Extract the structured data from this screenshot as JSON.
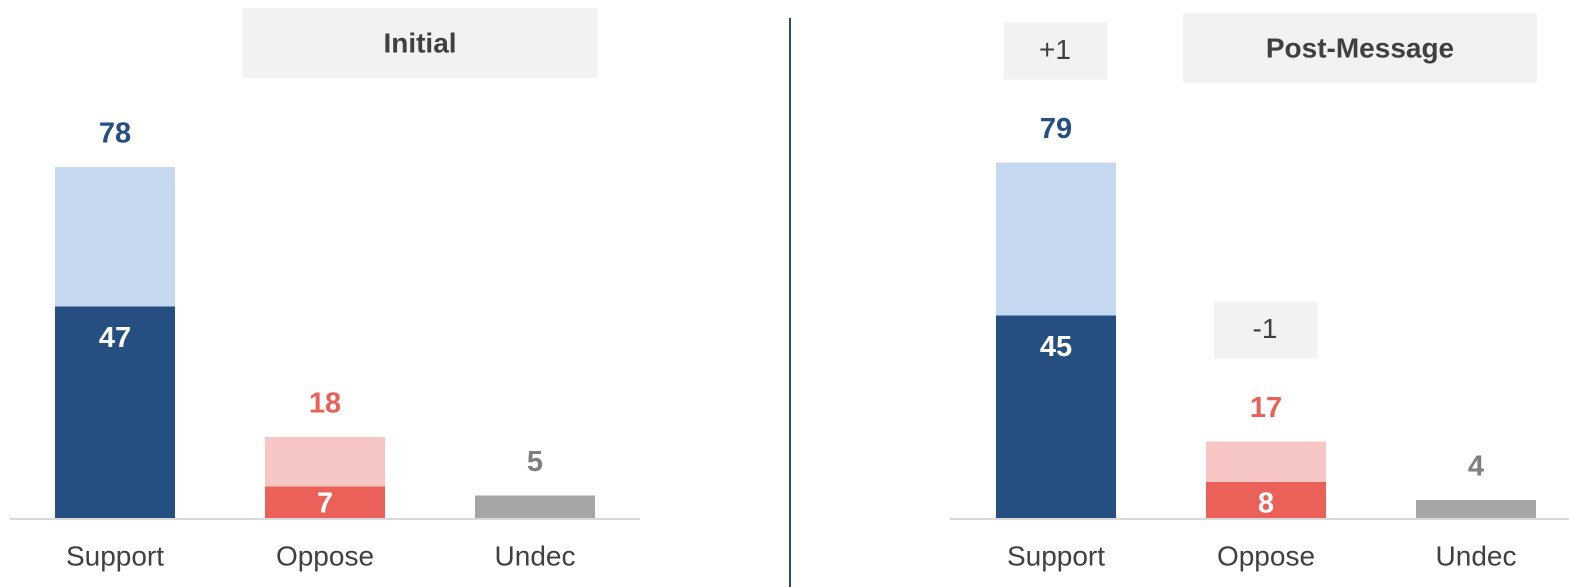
{
  "chart_data": [
    {
      "type": "bar",
      "title": "Initial",
      "categories": [
        "Support",
        "Oppose",
        "Undec"
      ],
      "values": [
        78,
        18,
        5
      ],
      "inner_values": [
        47,
        7,
        null
      ],
      "colors": [
        "#c6d9f0",
        "#f6c6c4",
        "#a6a6a6"
      ],
      "inner_colors": [
        "#244f80",
        "#eb6159",
        null
      ],
      "label_colors": [
        "#244f80",
        "#eb6159",
        "#7f7f7f"
      ],
      "ylim": [
        0,
        80
      ]
    },
    {
      "type": "bar",
      "title": "Post-Message",
      "categories": [
        "Support",
        "Oppose",
        "Undec"
      ],
      "values": [
        79,
        17,
        4
      ],
      "inner_values": [
        45,
        8,
        null
      ],
      "colors": [
        "#c6d9f0",
        "#f6c6c4",
        "#a6a6a6"
      ],
      "inner_colors": [
        "#244f80",
        "#eb6159",
        null
      ],
      "label_colors": [
        "#244f80",
        "#eb6159",
        "#7f7f7f"
      ],
      "changes": [
        1,
        -1,
        null
      ],
      "change_labels": [
        "+1",
        "-1",
        null
      ],
      "ylim": [
        0,
        80
      ]
    }
  ]
}
